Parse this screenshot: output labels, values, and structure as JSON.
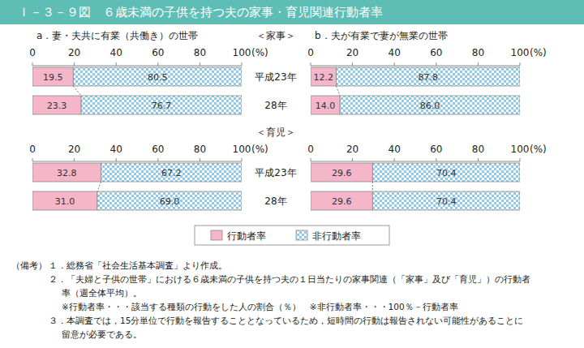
{
  "header": {
    "title": "Ｉ－３－９図　６歳未満の子供を持つ夫の家事・育児関連行動者率"
  },
  "chart_data": [
    {
      "type": "bar",
      "orientation": "horizontal",
      "stacked": true,
      "data_labels": true,
      "grid": false,
      "legend": "bottom",
      "title": "a．妻・夫共に有業（共働き）の世帯",
      "subtitle": "＜家事＞",
      "categories": [
        "平成23年",
        "28年"
      ],
      "xlim": [
        0,
        100
      ],
      "xticks": [
        0,
        20,
        40,
        60,
        80,
        100
      ],
      "xlabel": "(%)",
      "series": [
        {
          "name": "行動者率",
          "color": "#f4b6c8",
          "values": [
            19.5,
            23.3
          ]
        },
        {
          "name": "非行動者率",
          "color": "#8fc8ea",
          "values": [
            80.5,
            76.7
          ]
        }
      ]
    },
    {
      "type": "bar",
      "orientation": "horizontal",
      "stacked": true,
      "data_labels": true,
      "grid": false,
      "title": "b．夫が有業で妻が無業の世帯",
      "categories": [
        null,
        null
      ],
      "xlim": [
        0,
        100
      ],
      "xticks": [
        0,
        20,
        40,
        60,
        80,
        100
      ],
      "xlabel": "(%)",
      "series": [
        {
          "color": "#f4b6c8",
          "values": [
            12.2,
            14.0
          ],
          "value_labels": [
            "12.2",
            "14.0"
          ]
        },
        {
          "color": "#8fc8ea",
          "values": [
            87.8,
            86.0
          ],
          "value_labels": [
            "87.8",
            "86.0"
          ]
        }
      ]
    },
    {
      "type": "bar",
      "orientation": "horizontal",
      "stacked": true,
      "data_labels": true,
      "grid": false,
      "subtitle": "＜育児＞",
      "categories": [
        "平成23年",
        "28年"
      ],
      "xlim": [
        0,
        100
      ],
      "xticks": [
        0,
        20,
        40,
        60,
        80,
        100
      ],
      "xlabel": "(%)",
      "series": [
        {
          "color": "#f4b6c8",
          "values": [
            32.8,
            31.0
          ],
          "value_labels": [
            "32.8",
            "31.0"
          ]
        },
        {
          "color": "#8fc8ea",
          "values": [
            67.2,
            69.0
          ],
          "value_labels": [
            "67.2",
            "69.0"
          ]
        }
      ]
    },
    {
      "type": "bar",
      "orientation": "horizontal",
      "stacked": true,
      "data_labels": true,
      "grid": false,
      "categories": [
        null,
        null
      ],
      "xlim": [
        0,
        100
      ],
      "xticks": [
        0,
        20,
        40,
        60,
        80,
        100
      ],
      "xlabel": "(%)",
      "series": [
        {
          "color": "#f4b6c8",
          "values": [
            29.6,
            29.6
          ]
        },
        {
          "color": "#8fc8ea",
          "values": [
            70.4,
            70.4
          ]
        }
      ]
    }
  ],
  "notes": {
    "label": "（備考）",
    "lines": [
      "１．総務省「社会生活基本調査」より作成。",
      "２．「夫婦と子供の世帯」における６歳未満の子供を持つ夫の１日当たりの家事関連（「家事」及び「育児」）の行動者",
      "率（週全体平均）。",
      "※行動者率・・・該当する種類の行動をした人の割合（％）　※非行動者率・・・100％－行動者率",
      "３．本調査では，15分単位で行動を報告することとなっているため，短時間の行動は報告されない可能性があることに",
      "留意が必要である。"
    ]
  }
}
